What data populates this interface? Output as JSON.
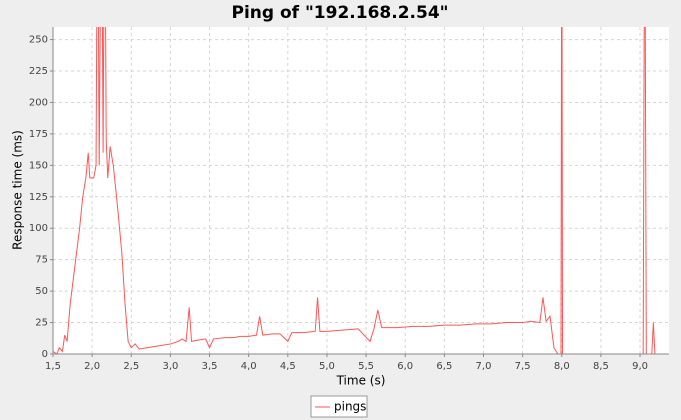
{
  "chart_data": {
    "type": "line",
    "title": "Ping of \"192.168.2.54\"",
    "x_label": "Time (s)",
    "y_label": "Response time (ms)",
    "x": [
      1.5,
      1.55,
      1.58,
      1.62,
      1.65,
      1.68,
      1.72,
      1.76,
      1.8,
      1.84,
      1.88,
      1.92,
      1.95,
      1.97,
      2.02,
      2.05,
      2.07,
      2.09,
      2.12,
      2.14,
      2.16,
      2.18,
      2.2,
      2.23,
      2.27,
      2.32,
      2.38,
      2.42,
      2.46,
      2.5,
      2.55,
      2.6,
      2.7,
      2.8,
      2.9,
      3.0,
      3.1,
      3.15,
      3.2,
      3.24,
      3.27,
      3.35,
      3.45,
      3.5,
      3.55,
      3.7,
      3.8,
      3.9,
      4.0,
      4.1,
      4.14,
      4.18,
      4.3,
      4.4,
      4.5,
      4.55,
      4.7,
      4.85,
      4.88,
      4.91,
      5.0,
      5.2,
      5.4,
      5.55,
      5.6,
      5.65,
      5.7,
      5.9,
      6.1,
      6.3,
      6.5,
      6.7,
      6.9,
      7.1,
      7.3,
      7.5,
      7.6,
      7.72,
      7.76,
      7.8,
      7.85,
      7.9,
      7.95,
      7.99,
      8.0,
      8.01,
      8.3,
      8.6,
      9.04,
      9.06,
      9.08,
      9.15,
      9.17,
      9.19,
      9.37
    ],
    "series": [
      {
        "name": "pings",
        "color": "#ff5555",
        "values": [
          2,
          0,
          5,
          2,
          15,
          10,
          40,
          60,
          80,
          100,
          125,
          140,
          160,
          140,
          140,
          150,
          400,
          150,
          400,
          160,
          400,
          170,
          140,
          165,
          150,
          120,
          80,
          40,
          10,
          5,
          8,
          4,
          5,
          6,
          7,
          8,
          10,
          12,
          10,
          37,
          10,
          11,
          12,
          5,
          12,
          13,
          13,
          14,
          14,
          15,
          30,
          15,
          16,
          16,
          10,
          17,
          17,
          18,
          45,
          18,
          18,
          19,
          20,
          10,
          20,
          35,
          21,
          21,
          22,
          22,
          23,
          23,
          24,
          24,
          25,
          25,
          26,
          25,
          45,
          26,
          30,
          5,
          0,
          0,
          400,
          0,
          0,
          0,
          0,
          400,
          0,
          0,
          25,
          0,
          0
        ]
      }
    ],
    "xlim": [
      1.5,
      9.37
    ],
    "ylim": [
      0,
      260
    ],
    "xticks": [
      {
        "value": 1.5,
        "label": "1,5"
      },
      {
        "value": 2.0,
        "label": "2,0"
      },
      {
        "value": 2.5,
        "label": "2,5"
      },
      {
        "value": 3.0,
        "label": "3,0"
      },
      {
        "value": 3.5,
        "label": "3,5"
      },
      {
        "value": 4.0,
        "label": "4,0"
      },
      {
        "value": 4.5,
        "label": "4,5"
      },
      {
        "value": 5.0,
        "label": "5,0"
      },
      {
        "value": 5.5,
        "label": "5,5"
      },
      {
        "value": 6.0,
        "label": "6,0"
      },
      {
        "value": 6.5,
        "label": "6,5"
      },
      {
        "value": 7.0,
        "label": "7,0"
      },
      {
        "value": 7.5,
        "label": "7,5"
      },
      {
        "value": 8.0,
        "label": "8,0"
      },
      {
        "value": 8.5,
        "label": "8,5"
      },
      {
        "value": 9.0,
        "label": "9,0"
      }
    ],
    "yticks": [
      0,
      25,
      50,
      75,
      100,
      125,
      150,
      175,
      200,
      225,
      250
    ],
    "grid": true
  }
}
